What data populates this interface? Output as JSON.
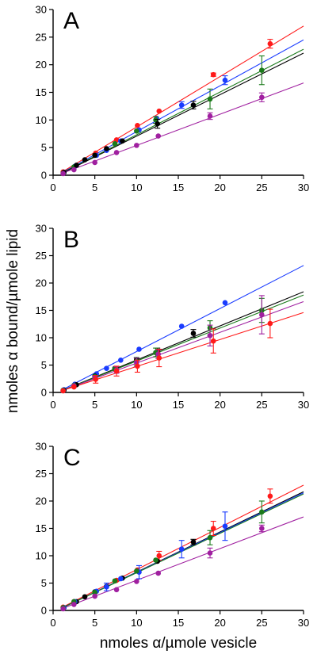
{
  "figure": {
    "ylabel": "nmoles α bound/µmole lipid",
    "xlabel": "nmoles α/µmole vesicle"
  },
  "colors": {
    "red": "#ff1a1a",
    "blue": "#1a3cff",
    "green": "#1a7a1a",
    "black": "#000000",
    "purple": "#a020a0",
    "axis": "#000000"
  },
  "chart_data": [
    {
      "type": "scatter",
      "panel_label": "A",
      "xlim": [
        0,
        30
      ],
      "ylim": [
        0,
        30
      ],
      "xticks": [
        0,
        5,
        10,
        15,
        20,
        25,
        30
      ],
      "yticks": [
        0,
        5,
        10,
        15,
        20,
        25,
        30
      ],
      "series": [
        {
          "color": "red",
          "fit": [
            [
              1,
              0.5
            ],
            [
              30,
              27
            ]
          ],
          "points": [
            {
              "x": 1.2,
              "y": 0.6
            },
            {
              "x": 2.5,
              "y": 1.5
            },
            {
              "x": 5.1,
              "y": 4.0
            },
            {
              "x": 7.6,
              "y": 6.4
            },
            {
              "x": 10.1,
              "y": 9.0
            },
            {
              "x": 12.7,
              "y": 11.6
            },
            {
              "x": 19.2,
              "y": 18.2,
              "err": 0.3
            },
            {
              "x": 26.0,
              "y": 23.8,
              "err": 0.8
            }
          ]
        },
        {
          "color": "blue",
          "fit": [
            [
              1,
              0.4
            ],
            [
              30,
              24.5
            ]
          ],
          "points": [
            {
              "x": 1.3,
              "y": 0.5
            },
            {
              "x": 2.6,
              "y": 1.6
            },
            {
              "x": 5.2,
              "y": 3.6
            },
            {
              "x": 6.4,
              "y": 4.5
            },
            {
              "x": 8.1,
              "y": 6.2
            },
            {
              "x": 10.3,
              "y": 8.2
            },
            {
              "x": 12.4,
              "y": 10.3
            },
            {
              "x": 15.4,
              "y": 12.7,
              "err": 0.6
            },
            {
              "x": 20.6,
              "y": 17.2,
              "err": 0.8
            }
          ]
        },
        {
          "color": "green",
          "fit": [
            [
              1,
              0.35
            ],
            [
              30,
              22.8
            ]
          ],
          "points": [
            {
              "x": 1.2,
              "y": 0.4
            },
            {
              "x": 2.5,
              "y": 1.5
            },
            {
              "x": 5.0,
              "y": 3.6
            },
            {
              "x": 7.4,
              "y": 5.7
            },
            {
              "x": 10.0,
              "y": 8.0
            },
            {
              "x": 12.3,
              "y": 10.0,
              "err": 0.6
            },
            {
              "x": 18.8,
              "y": 13.8,
              "err": 1.8
            },
            {
              "x": 25.0,
              "y": 19.0,
              "err": 2.6
            }
          ]
        },
        {
          "color": "black",
          "fit": [
            [
              1,
              0.3
            ],
            [
              30,
              22.1
            ]
          ],
          "points": [
            {
              "x": 1.3,
              "y": 0.5
            },
            {
              "x": 2.8,
              "y": 1.8
            },
            {
              "x": 3.8,
              "y": 2.8
            },
            {
              "x": 5.0,
              "y": 3.6
            },
            {
              "x": 6.4,
              "y": 4.8
            },
            {
              "x": 8.3,
              "y": 6.2
            },
            {
              "x": 12.5,
              "y": 9.3,
              "err": 0.8
            },
            {
              "x": 16.8,
              "y": 12.7,
              "err": 0.7
            }
          ]
        },
        {
          "color": "purple",
          "fit": [
            [
              1,
              0.3
            ],
            [
              30,
              16.7
            ]
          ],
          "points": [
            {
              "x": 1.2,
              "y": 0.3
            },
            {
              "x": 2.5,
              "y": 1.0
            },
            {
              "x": 5.0,
              "y": 2.3
            },
            {
              "x": 7.6,
              "y": 4.1
            },
            {
              "x": 10.0,
              "y": 5.4
            },
            {
              "x": 12.6,
              "y": 7.1
            },
            {
              "x": 18.8,
              "y": 10.7,
              "err": 0.6
            },
            {
              "x": 25.0,
              "y": 14.1,
              "err": 0.8
            }
          ]
        }
      ]
    },
    {
      "type": "scatter",
      "panel_label": "B",
      "xlim": [
        0,
        30
      ],
      "ylim": [
        0,
        30
      ],
      "xticks": [
        0,
        5,
        10,
        15,
        20,
        25,
        30
      ],
      "yticks": [
        0,
        5,
        10,
        15,
        20,
        25,
        30
      ],
      "series": [
        {
          "color": "blue",
          "fit": [
            [
              1,
              0.4
            ],
            [
              30,
              23.2
            ]
          ],
          "points": [
            {
              "x": 1.3,
              "y": 0.5
            },
            {
              "x": 2.6,
              "y": 1.5
            },
            {
              "x": 5.2,
              "y": 3.4
            },
            {
              "x": 6.4,
              "y": 4.4
            },
            {
              "x": 8.1,
              "y": 5.9
            },
            {
              "x": 10.3,
              "y": 7.9
            },
            {
              "x": 15.4,
              "y": 12.1
            },
            {
              "x": 20.6,
              "y": 16.4
            }
          ]
        },
        {
          "color": "black",
          "fit": [
            [
              1,
              0.3
            ],
            [
              30,
              18.4
            ]
          ],
          "points": [
            {
              "x": 1.3,
              "y": 0.4
            },
            {
              "x": 2.8,
              "y": 1.4
            },
            {
              "x": 5.0,
              "y": 3.0
            },
            {
              "x": 7.4,
              "y": 4.4
            },
            {
              "x": 10.0,
              "y": 6.0
            },
            {
              "x": 12.5,
              "y": 7.5,
              "err": 0.6
            },
            {
              "x": 16.8,
              "y": 10.8,
              "err": 0.7
            }
          ]
        },
        {
          "color": "green",
          "fit": [
            [
              1,
              0.3
            ],
            [
              30,
              17.8
            ]
          ],
          "points": [
            {
              "x": 1.2,
              "y": 0.4
            },
            {
              "x": 2.5,
              "y": 1.3
            },
            {
              "x": 5.0,
              "y": 2.9
            },
            {
              "x": 7.4,
              "y": 4.3
            },
            {
              "x": 10.0,
              "y": 5.7,
              "err": 0.7
            },
            {
              "x": 12.3,
              "y": 7.3,
              "err": 0.8
            },
            {
              "x": 18.8,
              "y": 11.8,
              "err": 1.3
            },
            {
              "x": 25.0,
              "y": 15.0,
              "err": 2.2
            }
          ]
        },
        {
          "color": "purple",
          "fit": [
            [
              1,
              0.3
            ],
            [
              30,
              16.6
            ]
          ],
          "points": [
            {
              "x": 1.2,
              "y": 0.3
            },
            {
              "x": 2.5,
              "y": 1.2
            },
            {
              "x": 5.0,
              "y": 2.7
            },
            {
              "x": 7.6,
              "y": 4.1,
              "err": 0.6
            },
            {
              "x": 10.0,
              "y": 5.5,
              "err": 0.8
            },
            {
              "x": 12.6,
              "y": 7.0,
              "err": 0.8
            },
            {
              "x": 18.8,
              "y": 10.4,
              "err": 1.9
            },
            {
              "x": 25.0,
              "y": 14.2,
              "err": 3.5
            }
          ]
        },
        {
          "color": "red",
          "fit": [
            [
              1,
              0.3
            ],
            [
              30,
              14.6
            ]
          ],
          "points": [
            {
              "x": 1.2,
              "y": 0.3
            },
            {
              "x": 2.5,
              "y": 1.0
            },
            {
              "x": 5.1,
              "y": 2.4,
              "err": 0.7
            },
            {
              "x": 7.6,
              "y": 3.9,
              "err": 0.9
            },
            {
              "x": 10.1,
              "y": 4.8,
              "err": 1.1
            },
            {
              "x": 12.7,
              "y": 6.3,
              "err": 1.6
            },
            {
              "x": 19.2,
              "y": 9.4,
              "err": 2.2
            },
            {
              "x": 26.0,
              "y": 12.6,
              "err": 2.6
            }
          ]
        }
      ]
    },
    {
      "type": "scatter",
      "panel_label": "C",
      "xlim": [
        0,
        30
      ],
      "ylim": [
        0,
        30
      ],
      "xticks": [
        0,
        5,
        10,
        15,
        20,
        25,
        30
      ],
      "yticks": [
        0,
        5,
        10,
        15,
        20,
        25,
        30
      ],
      "series": [
        {
          "color": "red",
          "fit": [
            [
              1,
              0.5
            ],
            [
              30,
              22.9
            ]
          ],
          "points": [
            {
              "x": 1.2,
              "y": 0.6
            },
            {
              "x": 2.5,
              "y": 1.6
            },
            {
              "x": 5.1,
              "y": 3.4
            },
            {
              "x": 7.6,
              "y": 5.5
            },
            {
              "x": 10.1,
              "y": 7.4
            },
            {
              "x": 12.7,
              "y": 10.0,
              "err": 0.8
            },
            {
              "x": 19.2,
              "y": 15.0,
              "err": 1.3
            },
            {
              "x": 26.0,
              "y": 20.9,
              "err": 1.3
            }
          ]
        },
        {
          "color": "black",
          "fit": [
            [
              1,
              0.4
            ],
            [
              30,
              21.7
            ]
          ],
          "points": [
            {
              "x": 1.3,
              "y": 0.5
            },
            {
              "x": 2.8,
              "y": 1.6
            },
            {
              "x": 3.8,
              "y": 2.5
            },
            {
              "x": 5.0,
              "y": 3.4
            },
            {
              "x": 6.4,
              "y": 4.4
            },
            {
              "x": 8.3,
              "y": 5.9
            },
            {
              "x": 12.5,
              "y": 9.0
            },
            {
              "x": 16.8,
              "y": 12.5,
              "err": 0.5
            }
          ]
        },
        {
          "color": "blue",
          "fit": [
            [
              1,
              0.4
            ],
            [
              30,
              21.5
            ]
          ],
          "points": [
            {
              "x": 1.3,
              "y": 0.5
            },
            {
              "x": 2.6,
              "y": 1.6
            },
            {
              "x": 5.2,
              "y": 3.5
            },
            {
              "x": 6.4,
              "y": 4.3,
              "err": 0.7
            },
            {
              "x": 8.1,
              "y": 5.8
            },
            {
              "x": 10.3,
              "y": 7.0,
              "err": 1.2
            },
            {
              "x": 15.4,
              "y": 11.2,
              "err": 1.6
            },
            {
              "x": 20.6,
              "y": 15.4,
              "err": 2.6
            }
          ]
        },
        {
          "color": "green",
          "fit": [
            [
              1,
              0.4
            ],
            [
              30,
              21.3
            ]
          ],
          "points": [
            {
              "x": 1.2,
              "y": 0.5
            },
            {
              "x": 2.5,
              "y": 1.6
            },
            {
              "x": 5.0,
              "y": 3.3
            },
            {
              "x": 7.4,
              "y": 5.4
            },
            {
              "x": 10.0,
              "y": 7.2
            },
            {
              "x": 12.3,
              "y": 9.2
            },
            {
              "x": 18.8,
              "y": 13.3,
              "err": 1.3
            },
            {
              "x": 25.0,
              "y": 18.0,
              "err": 2.0
            }
          ]
        },
        {
          "color": "purple",
          "fit": [
            [
              1,
              0.3
            ],
            [
              30,
              17.1
            ]
          ],
          "points": [
            {
              "x": 1.2,
              "y": 0.3
            },
            {
              "x": 2.5,
              "y": 1.1
            },
            {
              "x": 5.0,
              "y": 2.6
            },
            {
              "x": 7.6,
              "y": 3.8
            },
            {
              "x": 10.0,
              "y": 5.3
            },
            {
              "x": 12.6,
              "y": 6.8
            },
            {
              "x": 18.8,
              "y": 10.5,
              "err": 0.9
            },
            {
              "x": 25.0,
              "y": 15.0,
              "err": 0.6
            }
          ]
        }
      ]
    }
  ]
}
